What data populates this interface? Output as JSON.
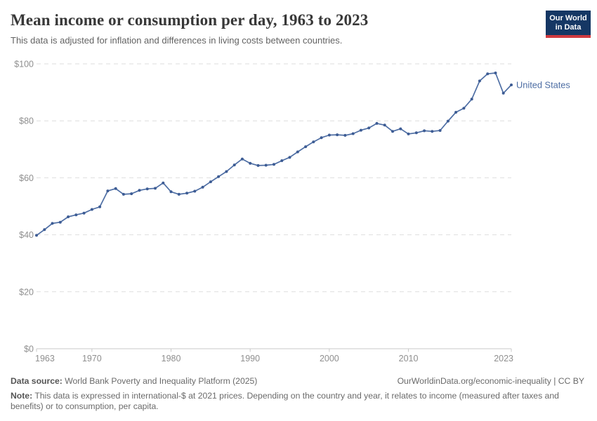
{
  "header": {
    "title": "Mean income or consumption per day, 1963 to 2023",
    "subtitle": "This data is adjusted for inflation and differences in living costs between countries.",
    "logo": {
      "line1": "Our World",
      "line2": "in Data",
      "bg_color": "#153764",
      "bar_color": "#d03a40"
    }
  },
  "chart_data": {
    "type": "line",
    "title": "Mean income or consumption per day, 1963 to 2023",
    "xlabel": "",
    "ylabel": "",
    "xlim": [
      1963,
      2023
    ],
    "ylim": [
      0,
      100
    ],
    "xticks": [
      1963,
      1970,
      1980,
      1990,
      2000,
      2010,
      2023
    ],
    "yticks": [
      0,
      20,
      40,
      60,
      80,
      100
    ],
    "ytick_labels": [
      "$0",
      "$20",
      "$40",
      "$60",
      "$80",
      "$100"
    ],
    "grid": "horizontal-dashed",
    "legend_position": "end-of-line",
    "end_label": "United States",
    "line_color": "#4e6ea4",
    "marker_color": "#3d5c94",
    "series": [
      {
        "name": "United States",
        "color": "#4e6ea4",
        "x": [
          1963,
          1964,
          1965,
          1966,
          1967,
          1968,
          1969,
          1970,
          1971,
          1972,
          1973,
          1974,
          1975,
          1976,
          1977,
          1978,
          1979,
          1980,
          1981,
          1982,
          1983,
          1984,
          1985,
          1986,
          1987,
          1988,
          1989,
          1990,
          1991,
          1992,
          1993,
          1994,
          1995,
          1996,
          1997,
          1998,
          1999,
          2000,
          2001,
          2002,
          2003,
          2004,
          2005,
          2006,
          2007,
          2008,
          2009,
          2010,
          2011,
          2012,
          2013,
          2014,
          2015,
          2016,
          2017,
          2018,
          2019,
          2020,
          2021,
          2022,
          2023
        ],
        "values": [
          39.8,
          41.8,
          44.0,
          44.4,
          46.3,
          47.0,
          47.6,
          48.9,
          49.8,
          55.4,
          56.2,
          54.2,
          54.4,
          55.6,
          56.1,
          56.3,
          58.2,
          55.1,
          54.2,
          54.6,
          55.3,
          56.7,
          58.6,
          60.4,
          62.2,
          64.5,
          66.6,
          65.1,
          64.3,
          64.4,
          64.7,
          66.0,
          67.2,
          69.1,
          70.9,
          72.6,
          74.1,
          75.0,
          75.1,
          74.9,
          75.5,
          76.7,
          77.5,
          79.1,
          78.5,
          76.3,
          77.2,
          75.4,
          75.8,
          76.5,
          76.3,
          76.6,
          79.9,
          83.0,
          84.4,
          87.6,
          94.0,
          96.5,
          96.8,
          89.7,
          92.6
        ]
      }
    ]
  },
  "footer": {
    "datasource_label": "Data source:",
    "datasource_text": " World Bank Poverty and Inequality Platform (2025)",
    "credit": "OurWorldinData.org/economic-inequality | CC BY",
    "note_label": "Note:",
    "note_text": " This data is expressed in international-$ at 2021 prices. Depending on the country and year, it relates to income (measured after taxes and benefits) or to consumption, per capita."
  }
}
